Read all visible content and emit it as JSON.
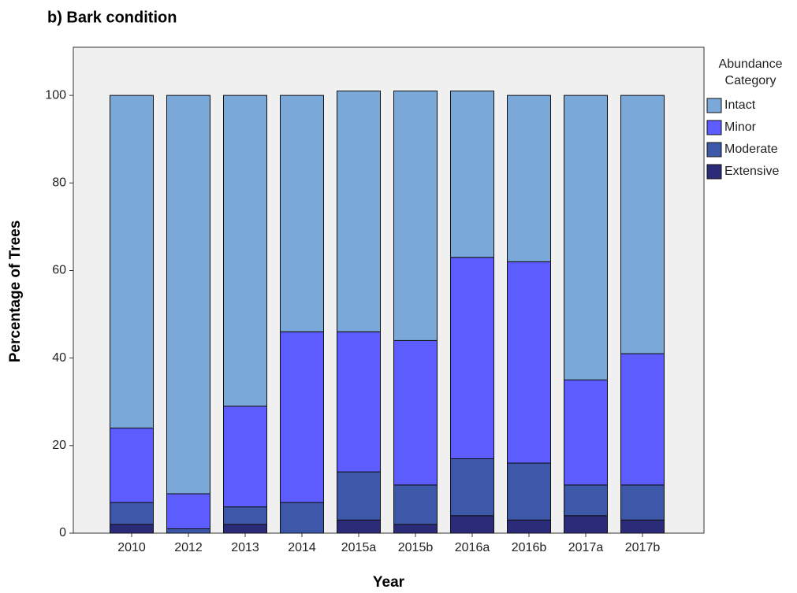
{
  "chart_data": {
    "type": "stacked_bar",
    "title": "b)   Bark condition",
    "x_label": "Year",
    "y_label": "Percentage of Trees",
    "legend_title": [
      "Abundance",
      "Category"
    ],
    "categories": [
      "2010",
      "2012",
      "2013",
      "2014",
      "2015a",
      "2015b",
      "2016a",
      "2016b",
      "2017a",
      "2017b"
    ],
    "series": [
      {
        "name": "Extensive",
        "color": "#2b2b7a",
        "values": [
          2,
          0,
          2,
          0,
          3,
          2,
          4,
          3,
          4,
          3
        ]
      },
      {
        "name": "Moderate",
        "color": "#3d58a8",
        "values": [
          5,
          1,
          4,
          7,
          11,
          9,
          13,
          13,
          7,
          8
        ]
      },
      {
        "name": "Minor",
        "color": "#5c5cff",
        "values": [
          17,
          8,
          23,
          39,
          32,
          33,
          46,
          46,
          24,
          30
        ]
      },
      {
        "name": "Intact",
        "color": "#7aa8d8",
        "values": [
          76,
          91,
          71,
          54,
          55,
          57,
          38,
          38,
          65,
          59
        ]
      }
    ],
    "ylim": [
      0,
      111
    ],
    "yticks": [
      0,
      20,
      40,
      60,
      80,
      100
    ],
    "legend": "right"
  }
}
